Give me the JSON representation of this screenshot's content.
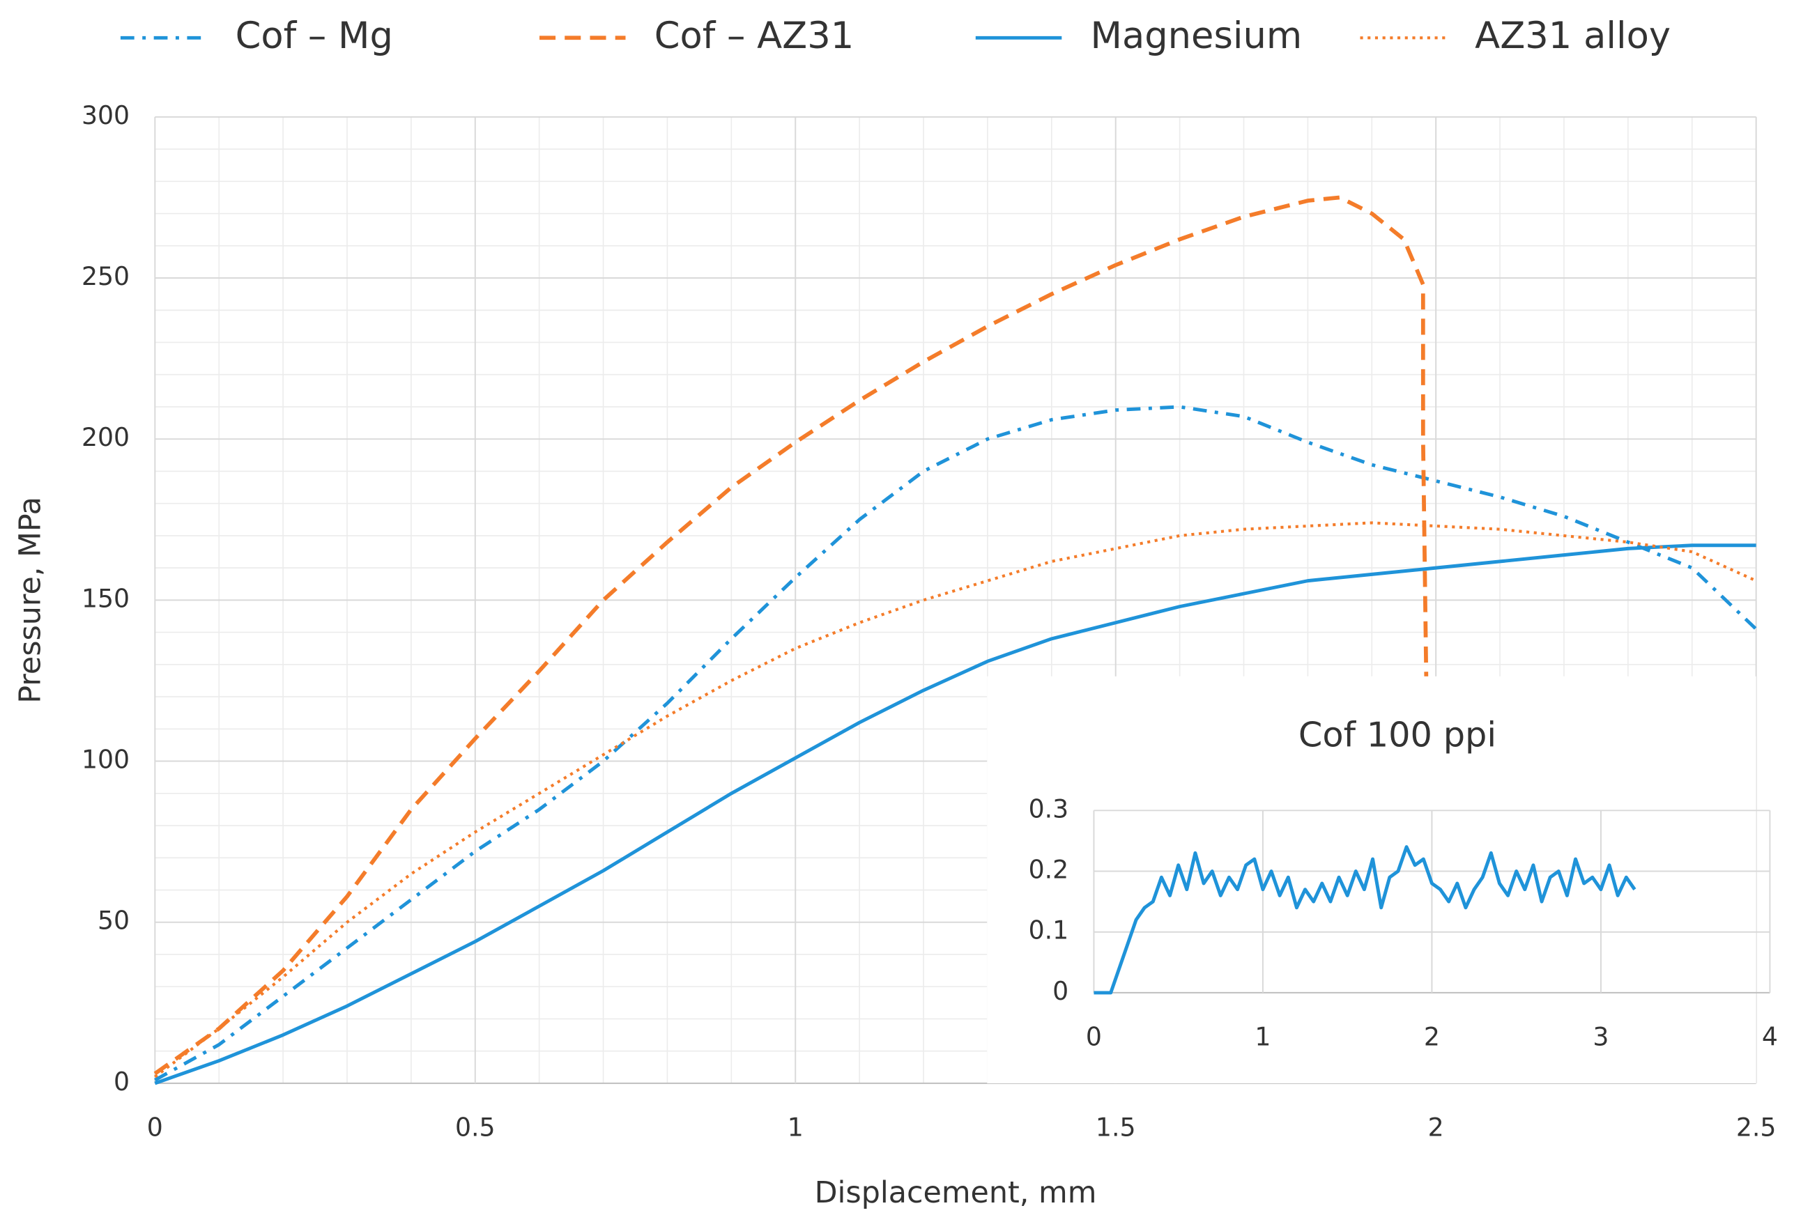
{
  "chart_data": [
    {
      "type": "line",
      "x_label": "Displacement, mm",
      "y_label": "Pressure, MPa",
      "xlim": [
        0,
        2.5
      ],
      "xticks": [
        0,
        0.5,
        1,
        1.5,
        2,
        2.5
      ],
      "ylim": [
        0,
        300
      ],
      "yticks": [
        0,
        50,
        100,
        150,
        200,
        250,
        300
      ],
      "grid": true,
      "minor_grid": true,
      "legend": "top",
      "series": [
        {
          "name": "Cof – Mg",
          "color": "#1f93d9",
          "style": "dashdot",
          "x": [
            0,
            0.1,
            0.2,
            0.3,
            0.4,
            0.5,
            0.6,
            0.7,
            0.8,
            0.9,
            1.0,
            1.1,
            1.2,
            1.3,
            1.4,
            1.5,
            1.6,
            1.7,
            1.8,
            1.9,
            2.0,
            2.1,
            2.2,
            2.3,
            2.4,
            2.5
          ],
          "values": [
            1,
            12,
            27,
            42,
            57,
            72,
            85,
            100,
            118,
            138,
            157,
            175,
            190,
            200,
            206,
            209,
            210,
            207,
            199,
            192,
            187,
            182,
            176,
            168,
            160,
            141
          ]
        },
        {
          "name": "Cof – AZ31",
          "color": "#f47c2a",
          "style": "dashed",
          "x": [
            0,
            0.1,
            0.2,
            0.3,
            0.4,
            0.5,
            0.6,
            0.7,
            0.8,
            0.9,
            1.0,
            1.1,
            1.2,
            1.3,
            1.4,
            1.5,
            1.6,
            1.7,
            1.8,
            1.85,
            1.9,
            1.95,
            1.98,
            1.98,
            1.985
          ],
          "values": [
            3,
            17,
            35,
            58,
            85,
            107,
            128,
            150,
            168,
            185,
            199,
            212,
            224,
            235,
            245,
            254,
            262,
            269,
            274,
            275,
            270,
            262,
            248,
            200,
            125
          ]
        },
        {
          "name": "Magnesium",
          "color": "#1f93d9",
          "style": "solid",
          "x": [
            0,
            0.1,
            0.2,
            0.3,
            0.4,
            0.5,
            0.6,
            0.7,
            0.8,
            0.9,
            1.0,
            1.1,
            1.2,
            1.3,
            1.4,
            1.5,
            1.6,
            1.7,
            1.8,
            1.9,
            2.0,
            2.1,
            2.2,
            2.3,
            2.4,
            2.5
          ],
          "values": [
            0,
            7,
            15,
            24,
            34,
            44,
            55,
            66,
            78,
            90,
            101,
            112,
            122,
            131,
            138,
            143,
            148,
            152,
            156,
            158,
            160,
            162,
            164,
            166,
            167,
            167
          ]
        },
        {
          "name": "AZ31 alloy",
          "color": "#f47c2a",
          "style": "dotted",
          "x": [
            0,
            0.1,
            0.2,
            0.3,
            0.4,
            0.5,
            0.6,
            0.7,
            0.8,
            0.9,
            1.0,
            1.1,
            1.2,
            1.3,
            1.4,
            1.5,
            1.6,
            1.7,
            1.8,
            1.9,
            2.0,
            2.1,
            2.2,
            2.3,
            2.4,
            2.5
          ],
          "values": [
            2,
            17,
            33,
            50,
            65,
            78,
            90,
            102,
            114,
            125,
            135,
            143,
            150,
            156,
            162,
            166,
            170,
            172,
            173,
            174,
            173,
            172,
            170,
            168,
            165,
            156
          ]
        }
      ]
    },
    {
      "type": "line",
      "title": "Cof 100 ppi",
      "xlim": [
        0,
        4
      ],
      "xticks": [
        0,
        1,
        2,
        3,
        4
      ],
      "ylim": [
        0,
        0.3
      ],
      "yticks": [
        0,
        0.1,
        0.2,
        0.3
      ],
      "grid": true,
      "series": [
        {
          "color": "#1f93d9",
          "style": "solid",
          "x": [
            0,
            0.1,
            0.15,
            0.2,
            0.25,
            0.3,
            0.35,
            0.4,
            0.45,
            0.5,
            0.55,
            0.6,
            0.65,
            0.7,
            0.75,
            0.8,
            0.85,
            0.9,
            0.95,
            1.0,
            1.05,
            1.1,
            1.15,
            1.2,
            1.25,
            1.3,
            1.35,
            1.4,
            1.45,
            1.5,
            1.55,
            1.6,
            1.65,
            1.7,
            1.75,
            1.8,
            1.85,
            1.9,
            1.95,
            2.0,
            2.05,
            2.1,
            2.15,
            2.2,
            2.25,
            2.3,
            2.35,
            2.4,
            2.45,
            2.5,
            2.55,
            2.6,
            2.65,
            2.7,
            2.75,
            2.8,
            2.85,
            2.9,
            2.95,
            3.0,
            3.05,
            3.1,
            3.15,
            3.2
          ],
          "values": [
            0,
            0,
            0.04,
            0.08,
            0.12,
            0.14,
            0.15,
            0.19,
            0.16,
            0.21,
            0.17,
            0.23,
            0.18,
            0.2,
            0.16,
            0.19,
            0.17,
            0.21,
            0.22,
            0.17,
            0.2,
            0.16,
            0.19,
            0.14,
            0.17,
            0.15,
            0.18,
            0.15,
            0.19,
            0.16,
            0.2,
            0.17,
            0.22,
            0.14,
            0.19,
            0.2,
            0.24,
            0.21,
            0.22,
            0.18,
            0.17,
            0.15,
            0.18,
            0.14,
            0.17,
            0.19,
            0.23,
            0.18,
            0.16,
            0.2,
            0.17,
            0.21,
            0.15,
            0.19,
            0.2,
            0.16,
            0.22,
            0.18,
            0.19,
            0.17,
            0.21,
            0.16,
            0.19,
            0.17
          ]
        }
      ]
    }
  ]
}
